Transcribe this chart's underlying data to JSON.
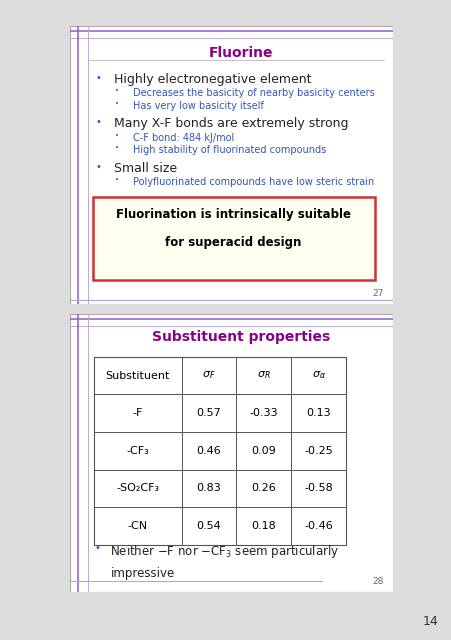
{
  "slide1": {
    "title": "Fluorine",
    "title_color": "#880088",
    "bullet1": "Highly electronegative element",
    "sub1a": "Decreases the basicity of nearby basicity centers",
    "sub1b": "Has very low basicity itself",
    "bullet2": "Many X-F bonds are extremely strong",
    "sub2a": "C-F bond: 484 kJ/mol",
    "sub2b": "High stability of fluorinated compounds",
    "bullet3": "Small size",
    "sub3a": "Polyfluorinated compounds have low steric strain",
    "highlight_text1": "Fluorination is intrinsically suitable",
    "highlight_text2": "for superacid design",
    "slide_num": "27",
    "bg_color": "#FFFFFF",
    "border_color": "#7777CC",
    "accent_color": "#9966CC",
    "highlight_bg": "#FFFFF0",
    "highlight_border": "#CC3333",
    "bullet_color": "#3355BB",
    "main_bullet_color": "#3355BB",
    "text_color": "#222222",
    "sub_text_color": "#3355BB"
  },
  "slide2": {
    "title": "Substituent properties",
    "title_color": "#880088",
    "table_rows": [
      [
        "-F",
        "0.57",
        "-0.33",
        "0.13"
      ],
      [
        "-CF₃",
        "0.46",
        "0.09",
        "-0.25"
      ],
      [
        "-SO₂CF₃",
        "0.83",
        "0.26",
        "-0.58"
      ],
      [
        "-CN",
        "0.54",
        "0.18",
        "-0.46"
      ]
    ],
    "slide_num": "28",
    "bg_color": "#FFFFFF",
    "border_color": "#7777CC",
    "accent_color": "#9966CC",
    "bullet_color": "#3355BB",
    "text_color": "#222222"
  },
  "outer_bg": "#E8E8E8",
  "page_num": "14",
  "bg_main": "#FFFFFF"
}
